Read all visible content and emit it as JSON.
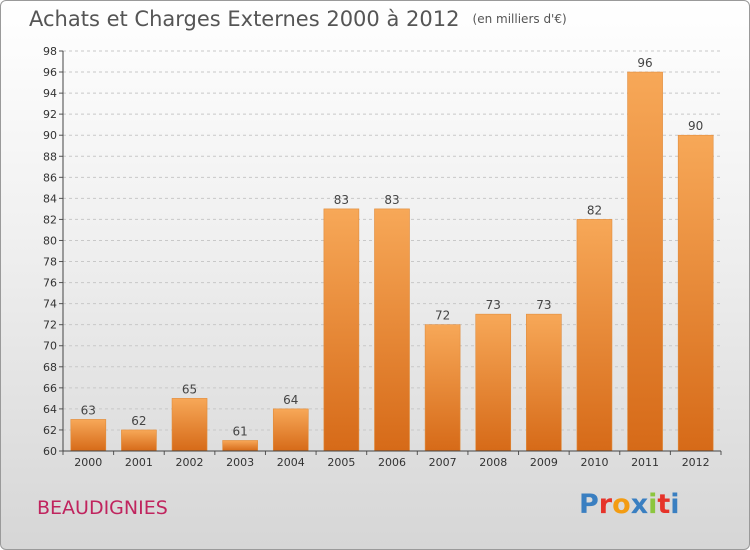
{
  "title": "Achats et Charges Externes 2000 à 2012",
  "unit": "(en milliers d'€)",
  "place": "BEAUDIGNIES",
  "logo": {
    "text": "Proxiti",
    "colors": [
      "#3a7fc1",
      "#e6332a",
      "#f39c12",
      "#3a7fc1",
      "#8cc63f",
      "#e6332a",
      "#3a7fc1"
    ]
  },
  "bar_colors": {
    "top": "#f7a858",
    "bottom": "#d66a18",
    "border": "#e08c3c"
  },
  "chart_data": {
    "type": "bar",
    "title": "Achats et Charges Externes 2000 à 2012",
    "xlabel": "",
    "ylabel": "",
    "categories": [
      "2000",
      "2001",
      "2002",
      "2003",
      "2004",
      "2005",
      "2006",
      "2007",
      "2008",
      "2009",
      "2010",
      "2011",
      "2012"
    ],
    "values": [
      63,
      62,
      65,
      61,
      64,
      83,
      83,
      72,
      73,
      73,
      82,
      96,
      90
    ],
    "ylim": [
      60,
      98
    ],
    "yticks": [
      60,
      62,
      64,
      66,
      68,
      70,
      72,
      74,
      76,
      78,
      80,
      82,
      84,
      86,
      88,
      90,
      92,
      94,
      96,
      98
    ],
    "grid": "horizontal-dashed",
    "legend": "none"
  }
}
